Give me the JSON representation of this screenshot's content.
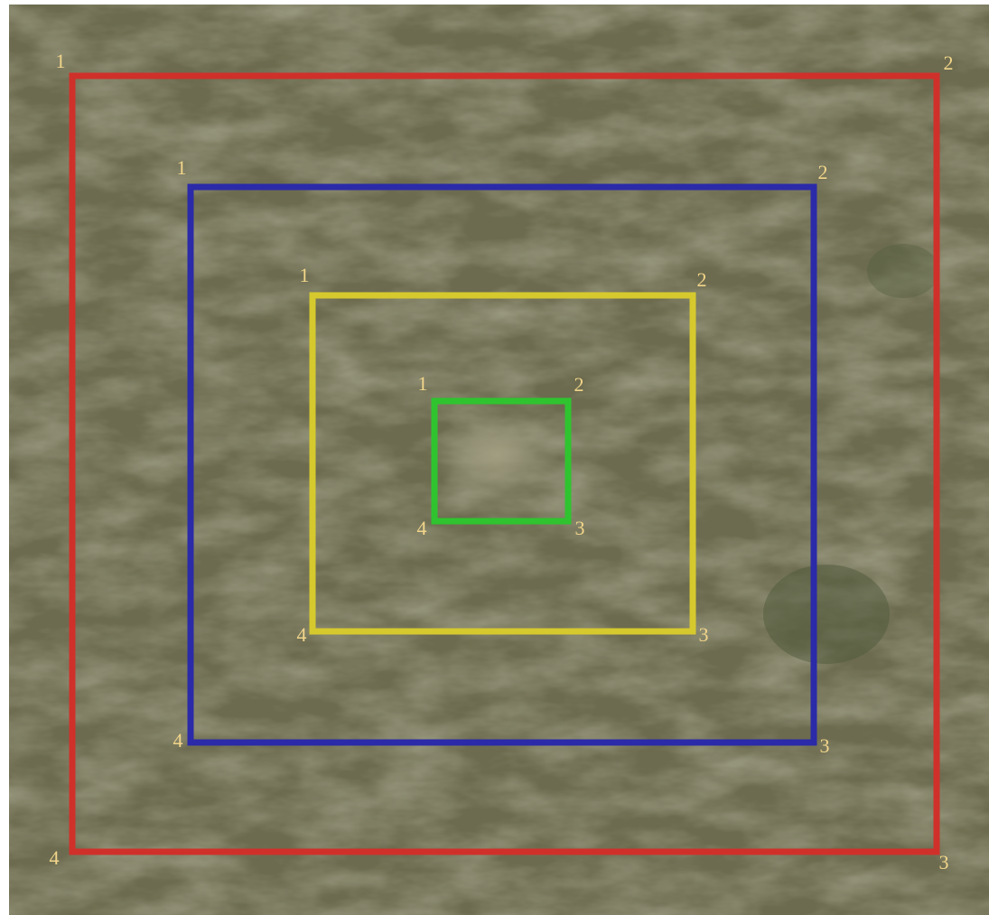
{
  "squares": [
    {
      "color": "#d0302a",
      "corners": [
        "1",
        "2",
        "3",
        "4"
      ]
    },
    {
      "color": "#2b2aa8",
      "corners": [
        "1",
        "2",
        "3",
        "4"
      ]
    },
    {
      "color": "#d6c92e",
      "corners": [
        "1",
        "2",
        "3",
        "4"
      ]
    },
    {
      "color": "#2fc42f",
      "corners": [
        "1",
        "2",
        "3",
        "4"
      ]
    }
  ]
}
